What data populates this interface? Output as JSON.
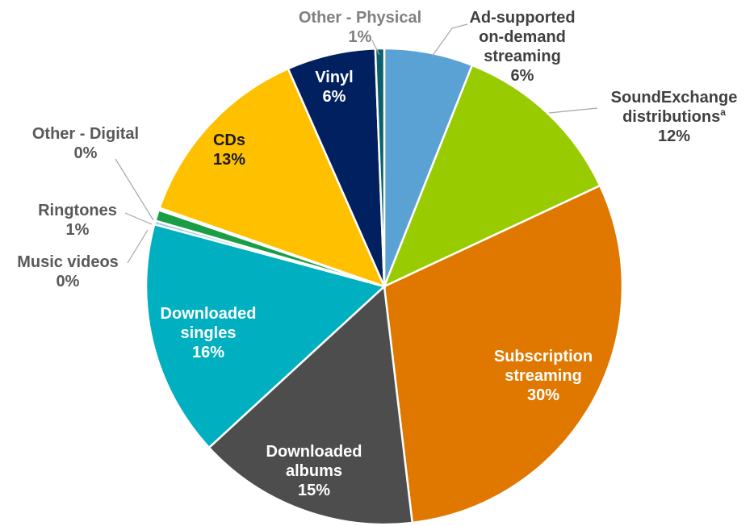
{
  "chart_data": {
    "type": "pie",
    "title": "",
    "series": [
      {
        "values": [
          6,
          12,
          30,
          15,
          16,
          0,
          1,
          0,
          13,
          6,
          1
        ]
      }
    ],
    "slices": [
      {
        "label_lines": [
          "Ad-supported",
          "on-demand",
          "streaming"
        ],
        "pct_text": "6%",
        "value": 6,
        "color": "#5aa2d4",
        "label_color": "#404040"
      },
      {
        "label_lines": [
          "SoundExchange",
          "distributions"
        ],
        "sup": "a",
        "pct_text": "12%",
        "value": 12,
        "color": "#99cc00",
        "label_color": "#404040"
      },
      {
        "label_lines": [
          "Subscription",
          "streaming"
        ],
        "pct_text": "30%",
        "value": 30,
        "color": "#e07800",
        "label_color": "#ffffff"
      },
      {
        "label_lines": [
          "Downloaded",
          "albums"
        ],
        "pct_text": "15%",
        "value": 15,
        "color": "#4d4d4d",
        "label_color": "#ffffff"
      },
      {
        "label_lines": [
          "Downloaded",
          "singles"
        ],
        "pct_text": "16%",
        "value": 16,
        "color": "#00b0c0",
        "label_color": "#ffffff"
      },
      {
        "label_lines": [
          "Music videos"
        ],
        "pct_text": "0%",
        "value": 0.25,
        "color": "#9ec8e8",
        "label_color": "#595959"
      },
      {
        "label_lines": [
          "Ringtones"
        ],
        "pct_text": "1%",
        "value": 0.75,
        "color": "#1a9e45",
        "label_color": "#595959"
      },
      {
        "label_lines": [
          "Other - Digital"
        ],
        "pct_text": "0%",
        "value": 0.15,
        "color": "#c8e6f5",
        "label_color": "#595959"
      },
      {
        "label_lines": [
          "CDs"
        ],
        "pct_text": "13%",
        "value": 13,
        "color": "#ffc000",
        "label_color": "#1a1a1a"
      },
      {
        "label_lines": [
          "Vinyl"
        ],
        "pct_text": "6%",
        "value": 6,
        "color": "#002060",
        "label_color": "#ffffff"
      },
      {
        "label_lines": [
          "Other - Physical"
        ],
        "pct_text": "1%",
        "value": 0.6,
        "color": "#0b5f6b",
        "label_color": "#808080"
      }
    ]
  }
}
